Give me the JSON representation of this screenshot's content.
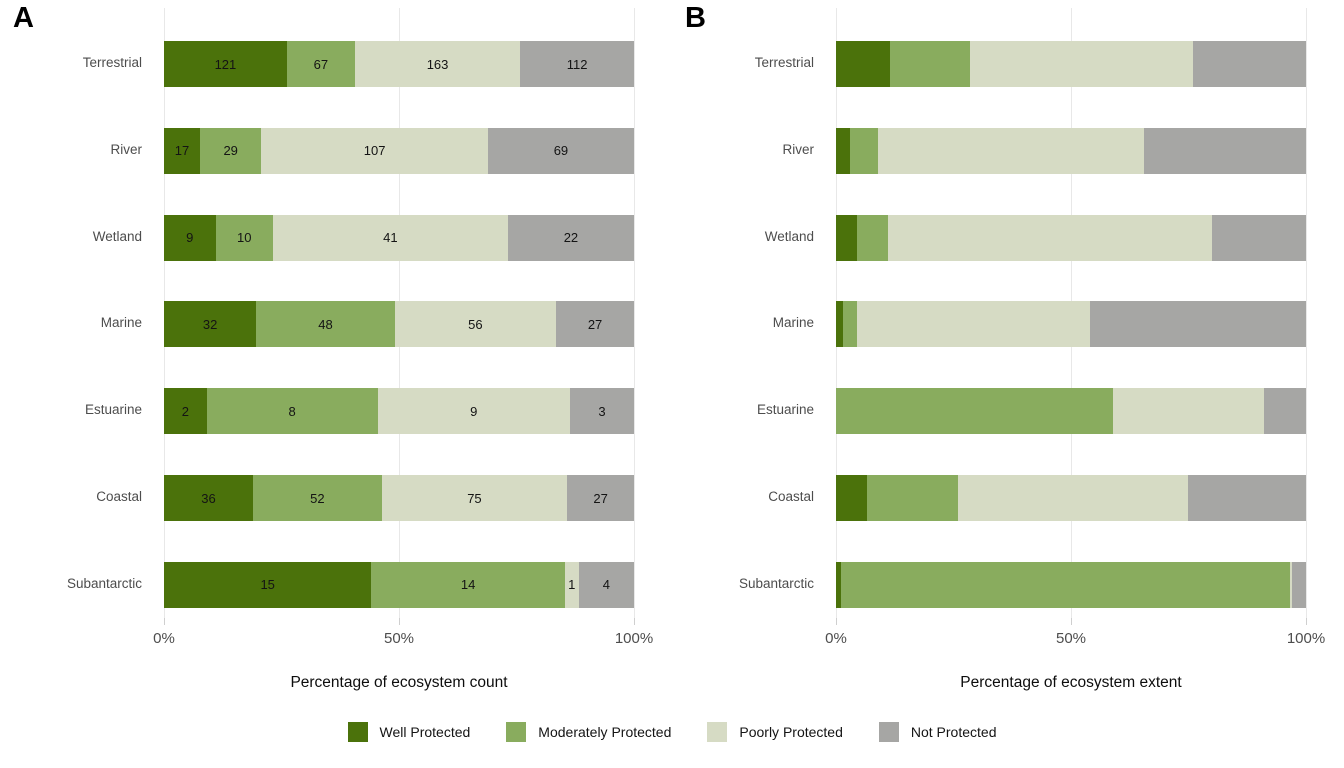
{
  "chart_data": [
    {
      "panel_label": "A",
      "type": "bar",
      "stacked": true,
      "orientation": "horizontal",
      "xlabel": "Percentage of ecosystem count",
      "show_values": true,
      "xlim": [
        0,
        100
      ],
      "grid": "vertical-only",
      "ticks": [
        {
          "label": "0%",
          "frac": 0
        },
        {
          "label": "50%",
          "frac": 0.5
        },
        {
          "label": "100%",
          "frac": 1
        }
      ],
      "categories": [
        "Terrestrial",
        "River",
        "Wetland",
        "Marine",
        "Estuarine",
        "Coastal",
        "Subantarctic"
      ],
      "series": [
        {
          "name": "Well Protected",
          "color": "#4b720b",
          "values": [
            121,
            17,
            9,
            32,
            2,
            36,
            15
          ]
        },
        {
          "name": "Moderately Protected",
          "color": "#89ac5e",
          "values": [
            67,
            29,
            10,
            48,
            8,
            52,
            14
          ]
        },
        {
          "name": "Poorly Protected",
          "color": "#d6dbc4",
          "values": [
            163,
            107,
            41,
            56,
            9,
            75,
            1
          ]
        },
        {
          "name": "Not Protected",
          "color": "#a6a6a4",
          "values": [
            112,
            69,
            22,
            27,
            3,
            27,
            4
          ]
        }
      ]
    },
    {
      "panel_label": "B",
      "type": "bar",
      "stacked": true,
      "orientation": "horizontal",
      "xlabel": "Percentage of ecosystem extent",
      "show_values": false,
      "xlim": [
        0,
        100
      ],
      "grid": "vertical-only",
      "ticks": [
        {
          "label": "0%",
          "frac": 0
        },
        {
          "label": "50%",
          "frac": 0.5
        },
        {
          "label": "100%",
          "frac": 1
        }
      ],
      "categories": [
        "Terrestrial",
        "River",
        "Wetland",
        "Marine",
        "Estuarine",
        "Coastal",
        "Subantarctic"
      ],
      "series": [
        {
          "name": "Well Protected",
          "color": "#4b720b",
          "values": [
            11.5,
            3,
            4.5,
            1.5,
            0,
            6.5,
            1
          ]
        },
        {
          "name": "Moderately Protected",
          "color": "#89ac5e",
          "values": [
            17,
            6,
            6.5,
            3,
            59,
            19.5,
            95.5
          ]
        },
        {
          "name": "Poorly Protected",
          "color": "#d6dbc4",
          "values": [
            47.5,
            56.5,
            69,
            49.5,
            32,
            49,
            0.5
          ]
        },
        {
          "name": "Not Protected",
          "color": "#a6a6a4",
          "values": [
            24,
            34.5,
            20,
            46,
            9,
            25,
            3
          ]
        }
      ]
    }
  ],
  "legend": {
    "items": [
      {
        "label": "Well Protected",
        "color": "#4b720b"
      },
      {
        "label": "Moderately Protected",
        "color": "#89ac5e"
      },
      {
        "label": "Poorly Protected",
        "color": "#d6dbc4"
      },
      {
        "label": "Not Protected",
        "color": "#a6a6a4"
      }
    ]
  },
  "colors": {
    "well_protected": "#4b720b",
    "moderately_protected": "#89ac5e",
    "poorly_protected": "#d6dbc4",
    "not_protected": "#a6a6a4",
    "gridline": "#e8e8e8",
    "axis_text": "#4d4d4d"
  }
}
